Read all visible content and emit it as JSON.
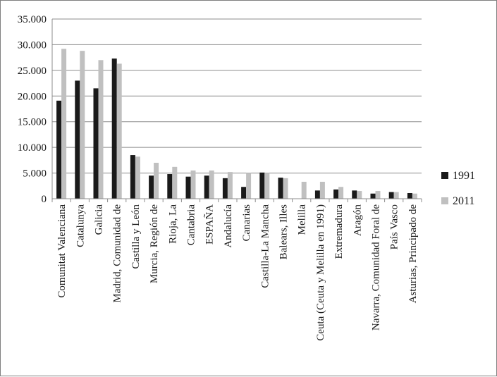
{
  "chart_data": {
    "type": "bar",
    "title": "",
    "xlabel": "",
    "ylabel": "",
    "ylim": [
      0,
      35000
    ],
    "yticks": [
      0,
      5000,
      10000,
      15000,
      20000,
      25000,
      30000,
      35000
    ],
    "ytick_labels": [
      "0",
      "5.000",
      "10.000",
      "15.000",
      "20.000",
      "25.000",
      "30.000",
      "35.000"
    ],
    "grid": true,
    "legend_position": "right",
    "categories": [
      "Comunitat Valenciana",
      "Catalunya",
      "Galicia",
      "Madrid, Comunidad de",
      "Castilla y León",
      "Murcia, Región de",
      "Rioja, La",
      "Cantabria",
      "ESPAÑA",
      "Andalucía",
      "Canarias",
      "Castilla-La Mancha",
      "Balears, Illes",
      "Melilla",
      "Ceuta (Ceuta y Melilla en 1991)",
      "Extremadura",
      "Aragón",
      "Navarra, Comunidad Foral de",
      "País Vasco",
      "Asturias, Principado de"
    ],
    "series": [
      {
        "name": "1991",
        "color": "#1a1a1a",
        "values": [
          19100,
          23000,
          21500,
          27300,
          8500,
          4500,
          4800,
          4300,
          4500,
          4000,
          2300,
          5100,
          4100,
          0,
          1600,
          1800,
          1600,
          1000,
          1300,
          1100
        ]
      },
      {
        "name": "2011",
        "color": "#c0c0c0",
        "values": [
          29200,
          28800,
          27000,
          26300,
          8200,
          7000,
          6200,
          5500,
          5500,
          5200,
          5000,
          5000,
          4000,
          3300,
          3300,
          2300,
          1500,
          1500,
          1300,
          1000
        ]
      }
    ]
  }
}
